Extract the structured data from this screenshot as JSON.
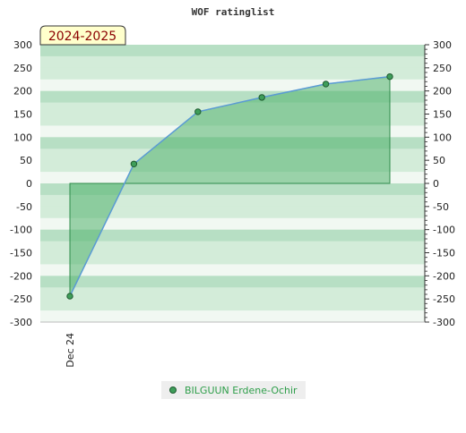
{
  "chart_data": {
    "type": "area",
    "title": "WOF ratinglist",
    "season_label": "2024-2025",
    "x_labels": [
      "Dec 24"
    ],
    "x_points": 6,
    "series": [
      {
        "name": "BILGUUN Erdene-Ochir",
        "values": [
          -244,
          42,
          155,
          186,
          215,
          231
        ]
      }
    ],
    "ylim": [
      -300,
      300
    ],
    "yticks": [
      300,
      250,
      200,
      150,
      100,
      50,
      0,
      -50,
      -100,
      -150,
      -200,
      -250,
      -300
    ],
    "ytick_labels": [
      "300",
      "250",
      "200",
      "150",
      "100",
      "50",
      "0",
      "-50",
      "-100",
      "-150",
      "-200",
      "-250",
      "-300"
    ],
    "legend_position": "bottom-center",
    "grid": "horizontal bands",
    "colors": {
      "band_dark": "#b7dfc4",
      "band_mid": "#d3ecd9",
      "band_light": "#f1f8f2",
      "fill": "#52b36e",
      "line": "#5b9bd5",
      "marker": "#3f9e5a",
      "season_bg": "#ffffcc"
    }
  }
}
